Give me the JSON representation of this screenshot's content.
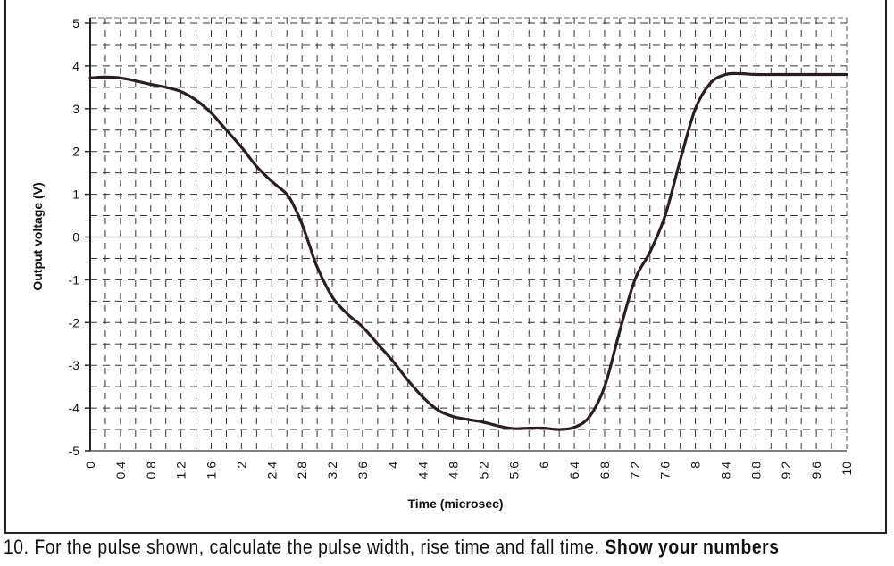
{
  "chart_data": {
    "type": "line",
    "title": "",
    "xlabel": "Time (microsec)",
    "ylabel": "Output voltage (V)",
    "xlim": [
      0,
      10
    ],
    "ylim": [
      -5,
      5
    ],
    "grid": true,
    "x_ticks": [
      "0",
      "0.4",
      "0.8",
      "1.2",
      "1.6",
      "2",
      "2.4",
      "2.8",
      "3.2",
      "3.6",
      "4",
      "4.4",
      "4.8",
      "5.2",
      "5.6",
      "6",
      "6.4",
      "6.8",
      "7.2",
      "7.6",
      "8",
      "8.4",
      "8.8",
      "9.2",
      "9.6",
      "10"
    ],
    "y_ticks": [
      "5",
      "4",
      "3",
      "2",
      "1",
      "0",
      "-1",
      "-2",
      "-3",
      "-4",
      "-5"
    ],
    "legend": [],
    "series": [
      {
        "name": "Output voltage",
        "color": "#2a1f1f",
        "x": [
          0,
          0.2,
          0.4,
          0.6,
          0.8,
          1.0,
          1.2,
          1.4,
          1.6,
          1.8,
          2.0,
          2.2,
          2.4,
          2.6,
          2.7,
          2.8,
          2.9,
          3.0,
          3.2,
          3.4,
          3.6,
          3.8,
          4.0,
          4.2,
          4.4,
          4.6,
          4.8,
          5.0,
          5.2,
          5.4,
          5.6,
          5.8,
          6.0,
          6.2,
          6.4,
          6.6,
          6.8,
          7.0,
          7.2,
          7.4,
          7.6,
          7.8,
          8.0,
          8.2,
          8.4,
          8.6,
          8.8,
          9.2,
          9.6,
          10
        ],
        "y": [
          3.72,
          3.74,
          3.72,
          3.65,
          3.57,
          3.5,
          3.4,
          3.2,
          2.9,
          2.5,
          2.1,
          1.65,
          1.3,
          1.0,
          0.7,
          0.3,
          -0.2,
          -0.7,
          -1.4,
          -1.8,
          -2.1,
          -2.5,
          -2.9,
          -3.35,
          -3.75,
          -4.05,
          -4.2,
          -4.27,
          -4.33,
          -4.42,
          -4.48,
          -4.47,
          -4.47,
          -4.5,
          -4.45,
          -4.2,
          -3.5,
          -2.2,
          -1.0,
          -0.35,
          0.5,
          1.8,
          3.0,
          3.6,
          3.8,
          3.82,
          3.8,
          3.8,
          3.8,
          3.8
        ]
      }
    ]
  },
  "question": {
    "number": "10.",
    "text": "For the pulse shown, calculate the pulse width, rise time and fall time.",
    "emphasis": "Show your numbers"
  }
}
